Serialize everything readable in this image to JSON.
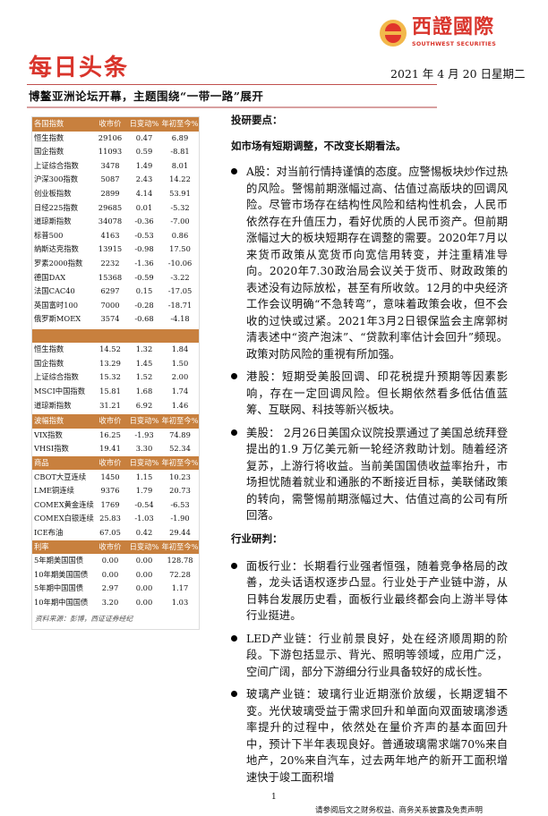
{
  "logo": {
    "cn": "西證國際",
    "en": "SOUTHWEST SECURITIES"
  },
  "header": {
    "title": "每日头条",
    "date": "2021 年 4 月 20 日星期二",
    "headline": "博鳌亚洲论坛开幕，主题围绕“一带一路”展开"
  },
  "colors": {
    "accent": "#c8803e",
    "brand_red": "#d9342b"
  },
  "table": {
    "sections": [
      {
        "header": [
          "各国指数",
          "收市价",
          "日变动%",
          "年初至今%"
        ],
        "rows": [
          [
            "恒生指数",
            "29106",
            "0.47",
            "6.89"
          ],
          [
            "国企指数",
            "11093",
            "0.59",
            "-8.81"
          ],
          [
            "上证综合指数",
            "3478",
            "1.49",
            "8.01"
          ],
          [
            "沪深300指数",
            "5087",
            "2.43",
            "14.22"
          ],
          [
            "创业板指数",
            "2899",
            "4.14",
            "53.91"
          ],
          [
            "日经225指数",
            "29685",
            "0.01",
            "-5.32"
          ],
          [
            "道琼斯指数",
            "34078",
            "-0.36",
            "-7.00"
          ],
          [
            "标普500",
            "4163",
            "-0.53",
            "0.86"
          ],
          [
            "纳斯达克指数",
            "13915",
            "-0.98",
            "17.50"
          ],
          [
            "罗素2000指数",
            "2232",
            "-1.36",
            "-10.06"
          ],
          [
            "德国DAX",
            "15368",
            "-0.59",
            "-3.22"
          ],
          [
            "法国CAC40",
            "6297",
            "0.15",
            "-17.05"
          ],
          [
            "英国富时100",
            "7000",
            "-0.28",
            "-18.71"
          ],
          [
            "俄罗斯MOEX",
            "3574",
            "-0.68",
            "-4.18"
          ]
        ]
      },
      {
        "header": [
          "",
          "",
          "",
          ""
        ],
        "rows": [
          [
            "恒生指数",
            "14.52",
            "1.32",
            "1.84"
          ],
          [
            "国企指数",
            "13.29",
            "1.45",
            "1.50"
          ],
          [
            "上证综合指数",
            "15.32",
            "1.52",
            "2.00"
          ],
          [
            "MSCI中国指数",
            "15.81",
            "1.68",
            "1.74"
          ],
          [
            "道琼斯指数",
            "31.21",
            "6.92",
            "1.46"
          ]
        ]
      },
      {
        "header": [
          "波幅指数",
          "收市价",
          "日变动%",
          "年初至今%"
        ],
        "rows": [
          [
            "VIX指数",
            "16.25",
            "-1.93",
            "74.89"
          ],
          [
            "VHSI指数",
            "19.41",
            "3.30",
            "52.34"
          ]
        ]
      },
      {
        "header": [
          "商品",
          "收市价",
          "日变动%",
          "年初至今%"
        ],
        "rows": [
          [
            "CBOT大豆连续",
            "1450",
            "1.15",
            "10.23"
          ],
          [
            "LME铜连续",
            "9376",
            "1.79",
            "20.73"
          ],
          [
            "COMEX黄金连续",
            "1769",
            "-0.54",
            "-6.53"
          ],
          [
            "COMEX白银连续",
            "25.83",
            "-1.03",
            "-1.90"
          ],
          [
            "ICE布油",
            "67.05",
            "0.42",
            "29.44"
          ]
        ]
      },
      {
        "header": [
          "利率",
          "收市价",
          "日变动%",
          "年初至今%"
        ],
        "rows": [
          [
            "5年期美国国债",
            "0.00",
            "0.00",
            "128.78"
          ],
          [
            "10年期美国国债",
            "0.00",
            "0.00",
            "72.28"
          ],
          [
            "5年期中国国债",
            "2.97",
            "0.00",
            "1.17"
          ],
          [
            "10年期中国国债",
            "3.20",
            "0.00",
            "1.03"
          ]
        ]
      }
    ],
    "source": "资料来源：彭博，西证证券经纪"
  },
  "main": {
    "heading1": "投研要点：",
    "heading2": "如市场有短期调整，不改变长期看法。",
    "bullets1": [
      "A股：对当前行情持谨慎的态度。应警惕板块炒作过热的风险。警惕前期涨幅过高、估值过高版块的回调风险。尽管市场存在结构性风险和结构性机会，人民币依然存在升值压力，看好优质的人民币资产。但前期涨幅过大的板块短期存在调整的需要。2020年7月以来货币政策从宽货币向宽信用转变，并注重精准导向。2020年7.30政治局会议关于货币、财政政策的表述没有边际放松，甚至有所收敛。12月的中央经济工作会议明确“不急转弯”，意味着政策会收，但不会收的过快或过紧。2021年3月2日银保监会主席郭树清表述中“资产泡沫”、“贷款利率估计会回升”频现。政策对防风险的重視有所加强。",
      "港股：短期受美股回调、印花税提升预期等因素影响，存在一定回调风险。但长期依然看多低估值蓝筹、互联网、科技等新兴板块。",
      "美股： 2月26日美国众议院投票通过了美国总统拜登提出的1.9 万亿美元新一轮经济救助计划。随着经济复苏，上游行将收益。当前美国国债收益率抬升，市场担忧随着就业和通胀的不断接近目标，美联储政策的转向，需警惕前期涨幅过大、估值过高的公司有所回落。"
    ],
    "heading3": "行业研判：",
    "bullets2": [
      "面板行业：长期看行业强者恒强，随着竞争格局的改善，龙头话语权逐步凸显。行业处于产业链中游，从日韩台发展历史看，面板行业最终都会向上游半导体行业挺进。",
      "LED产业链：行业前景良好，处在经济顺周期的阶段。下游包括显示、背光、照明等领域，应用广泛，空间广阔，部分下游细分行业具备较好的成长性。",
      "玻璃产业链：玻璃行业近期涨价放缓，长期逻辑不变。光伏玻璃受益于需求回升和单面向双面玻璃渗透率提升的过程中，依然处在量价齐声的基本面回升中，预计下半年表现良好。普通玻璃需求端70%来自地产，20%来自汽车，过去两年地产的新开工面积增速快于竣工面积增"
    ]
  },
  "footer": {
    "page": "1",
    "disclaimer": "请参阅后文之财务权益、商务关系披露及免责声明"
  }
}
